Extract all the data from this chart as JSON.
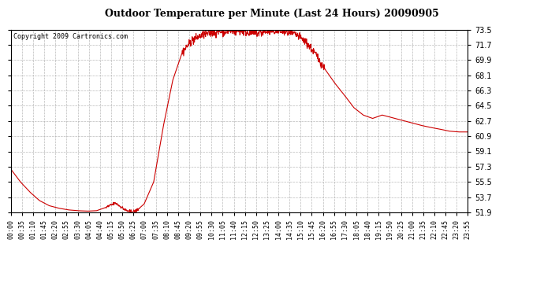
{
  "title": "Outdoor Temperature per Minute (Last 24 Hours) 20090905",
  "copyright": "Copyright 2009 Cartronics.com",
  "line_color": "#cc0000",
  "bg_color": "#ffffff",
  "plot_bg_color": "#ffffff",
  "grid_color": "#aaaaaa",
  "ylim": [
    51.9,
    73.5
  ],
  "yticks": [
    51.9,
    53.7,
    55.5,
    57.3,
    59.1,
    60.9,
    62.7,
    64.5,
    66.3,
    68.1,
    69.9,
    71.7,
    73.5
  ],
  "xtick_labels": [
    "00:00",
    "00:35",
    "01:10",
    "01:45",
    "02:20",
    "02:55",
    "03:30",
    "04:05",
    "04:40",
    "05:15",
    "05:50",
    "06:25",
    "07:00",
    "07:35",
    "08:10",
    "08:45",
    "09:20",
    "09:55",
    "10:30",
    "11:05",
    "11:40",
    "12:15",
    "12:50",
    "13:25",
    "14:00",
    "14:35",
    "15:10",
    "15:45",
    "16:20",
    "16:55",
    "17:30",
    "18:05",
    "18:40",
    "19:15",
    "19:50",
    "20:25",
    "21:00",
    "21:35",
    "22:10",
    "22:45",
    "23:20",
    "23:55"
  ],
  "key_times_h": [
    0.0,
    0.5,
    1.0,
    1.5,
    2.0,
    2.5,
    3.0,
    3.5,
    4.0,
    4.5,
    5.0,
    5.5,
    5.75,
    6.0,
    6.2,
    6.42,
    6.58,
    6.75,
    7.0,
    7.5,
    8.0,
    8.5,
    9.0,
    9.5,
    10.0,
    10.5,
    11.0,
    11.5,
    12.0,
    12.5,
    13.0,
    13.5,
    14.0,
    14.5,
    15.0,
    15.5,
    16.0,
    16.5,
    17.0,
    17.5,
    18.0,
    18.5,
    19.0,
    19.5,
    20.0,
    20.5,
    21.0,
    21.5,
    22.0,
    22.5,
    23.0,
    23.5,
    24.0
  ],
  "key_temps": [
    57.0,
    55.5,
    54.3,
    53.3,
    52.7,
    52.4,
    52.2,
    52.1,
    52.05,
    52.1,
    52.5,
    53.0,
    52.6,
    52.2,
    52.0,
    51.98,
    52.1,
    52.4,
    52.9,
    55.5,
    62.0,
    67.5,
    70.8,
    72.2,
    72.8,
    73.1,
    73.25,
    73.38,
    73.3,
    73.15,
    73.05,
    73.25,
    73.35,
    73.15,
    72.85,
    72.0,
    70.6,
    68.8,
    67.2,
    65.8,
    64.3,
    63.4,
    63.0,
    63.4,
    63.1,
    62.8,
    62.5,
    62.2,
    61.95,
    61.75,
    61.5,
    61.4,
    61.4
  ]
}
